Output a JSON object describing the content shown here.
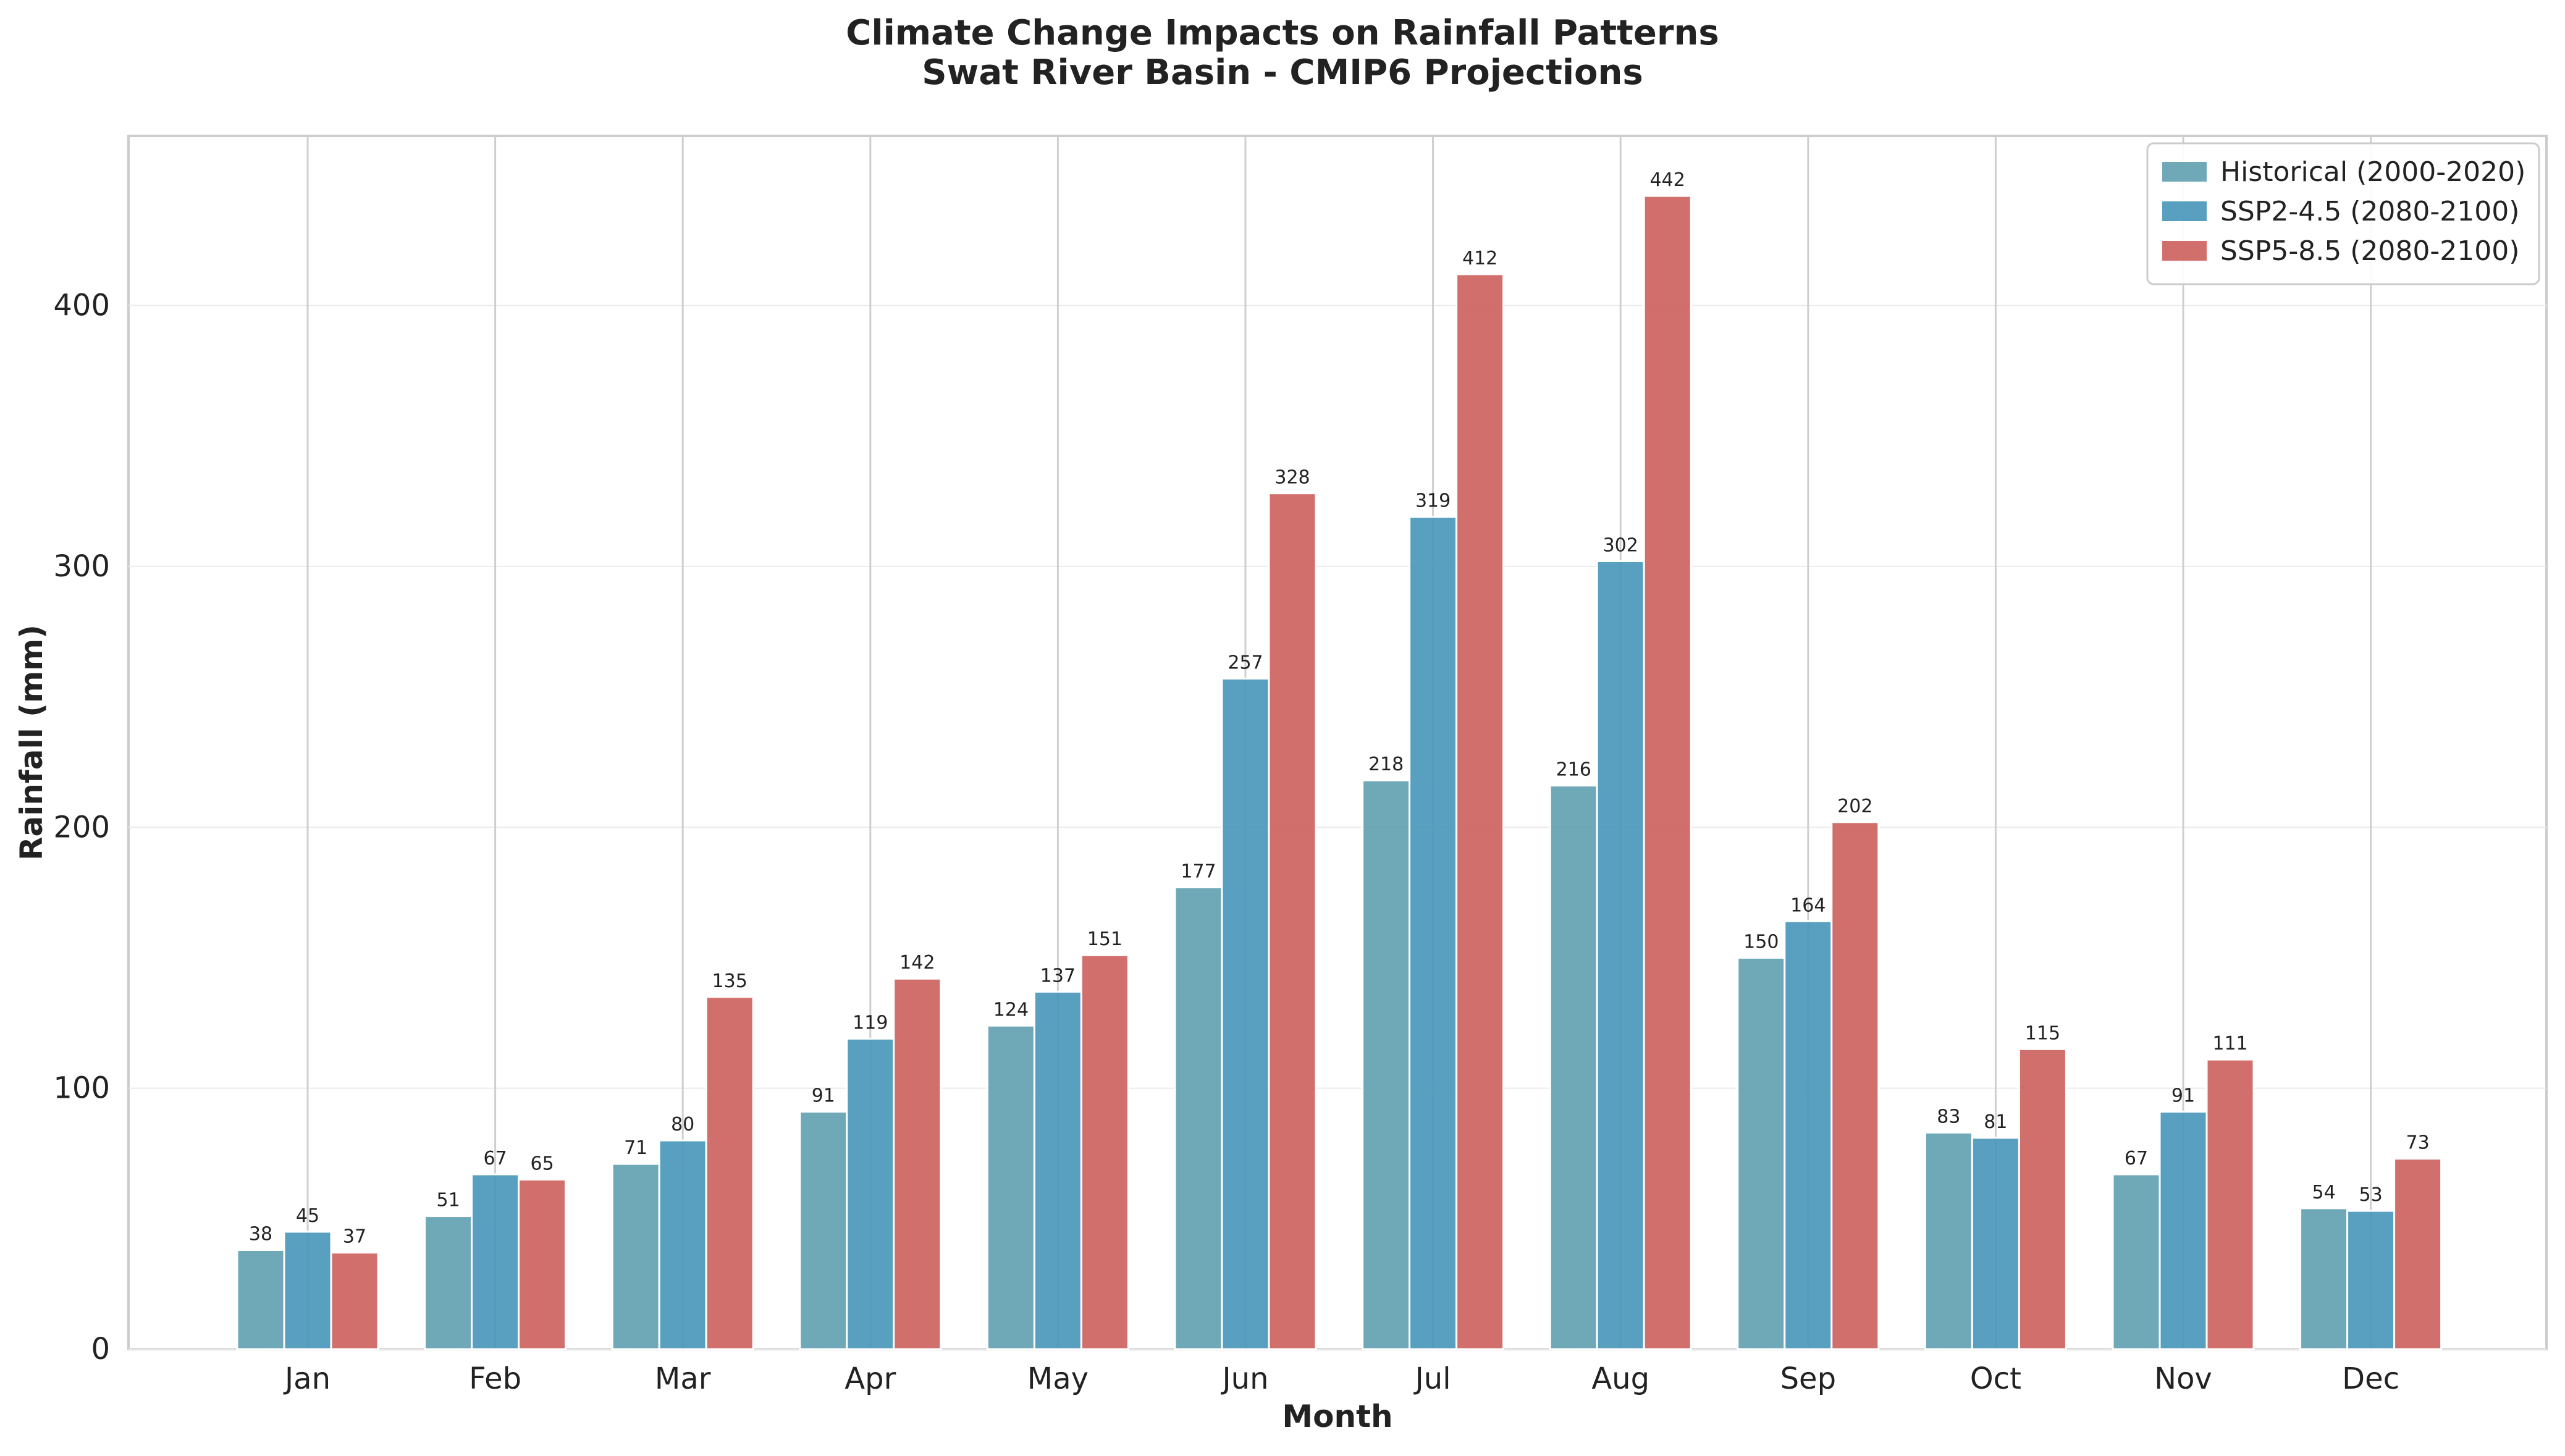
{
  "chart_data": {
    "type": "bar",
    "title": "Climate Change Impacts on Rainfall Patterns",
    "subtitle": "Swat River Basin - CMIP6 Projections",
    "xlabel": "Month",
    "ylabel": "Rainfall (mm)",
    "ylim": [
      0,
      465
    ],
    "yticks": [
      0,
      100,
      200,
      300,
      400
    ],
    "grid": true,
    "legend_position": "top-right",
    "categories": [
      "Jan",
      "Feb",
      "Mar",
      "Apr",
      "May",
      "Jun",
      "Jul",
      "Aug",
      "Sep",
      "Oct",
      "Nov",
      "Dec"
    ],
    "series": [
      {
        "name": "Historical (2000-2020)",
        "color": "#5f9eaf",
        "values": [
          38,
          51,
          71,
          91,
          124,
          177,
          218,
          216,
          150,
          83,
          67,
          54
        ]
      },
      {
        "name": "SSP2-4.5 (2080-2100)",
        "color": "#4695b9",
        "values": [
          45,
          67,
          80,
          119,
          137,
          257,
          319,
          302,
          164,
          81,
          91,
          53
        ]
      },
      {
        "name": "SSP5-8.5 (2080-2100)",
        "color": "#cc5f5c",
        "values": [
          37,
          65,
          135,
          142,
          151,
          328,
          412,
          442,
          202,
          115,
          111,
          73
        ]
      }
    ]
  }
}
